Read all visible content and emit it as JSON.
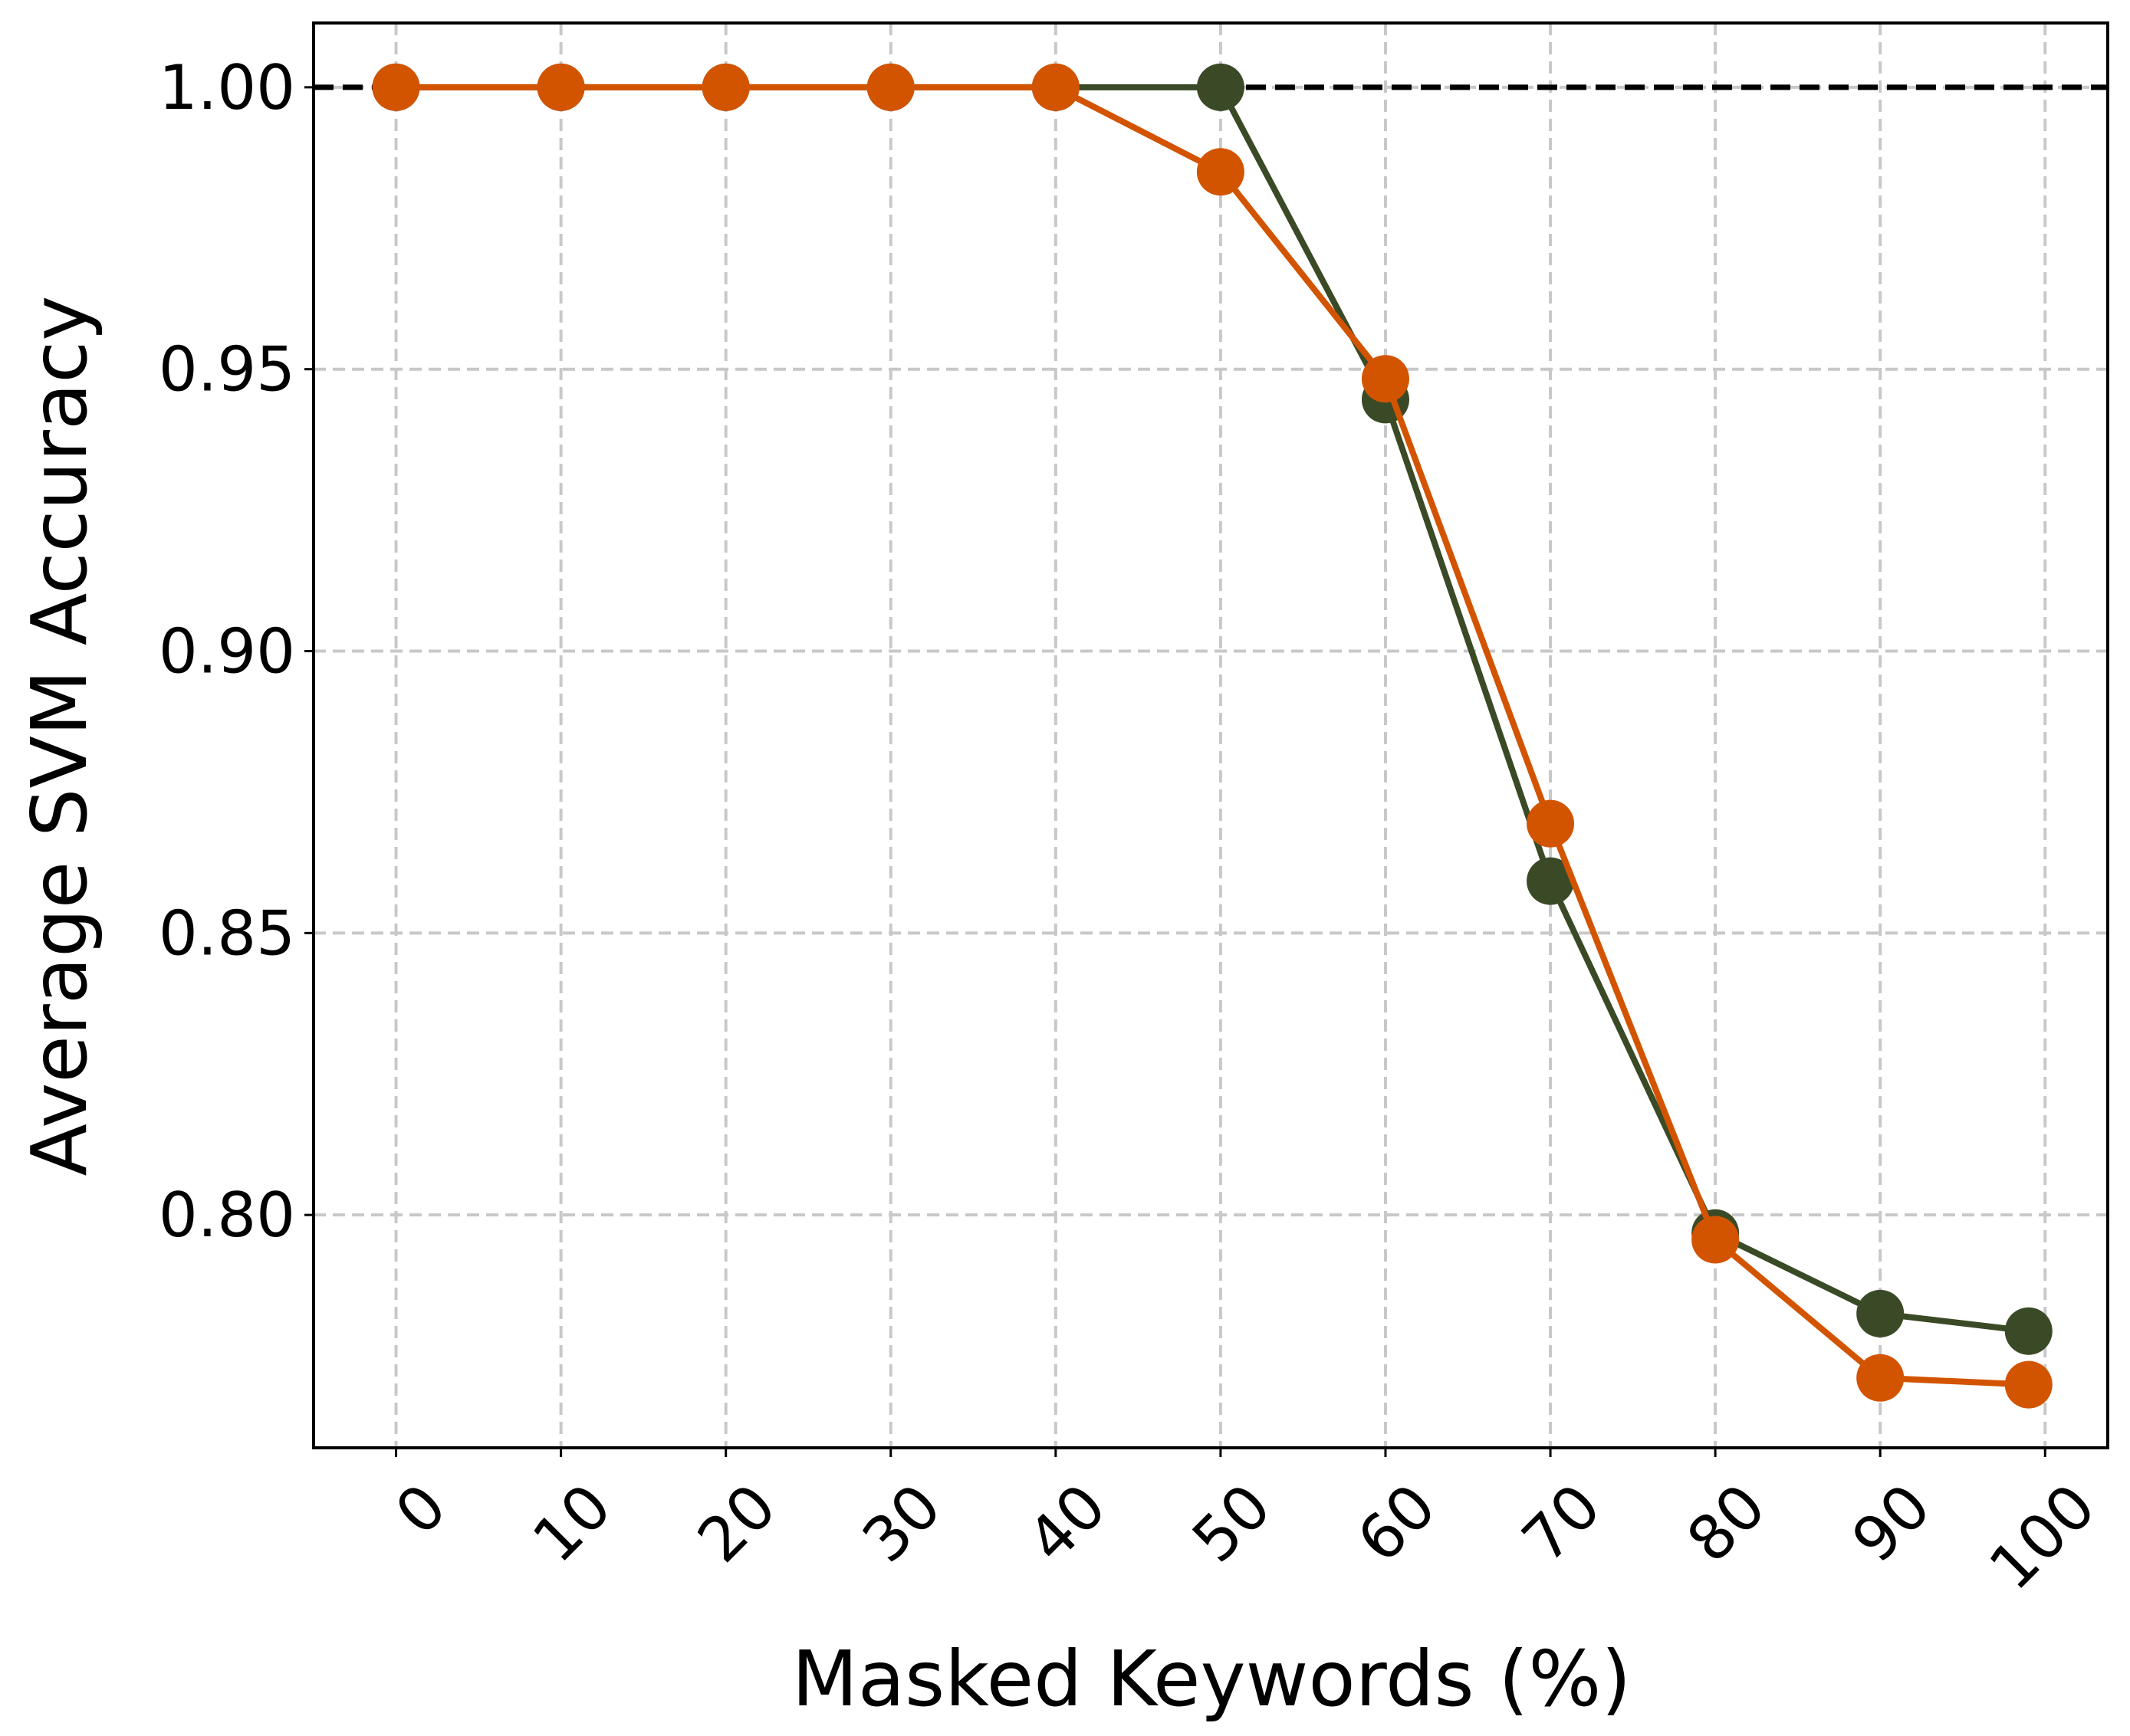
{
  "chart_data": {
    "type": "line",
    "xlabel": "Masked Keywords (%)",
    "ylabel": "Average SVM Accuracy",
    "x": [
      0,
      10,
      20,
      30,
      40,
      50,
      60,
      70,
      80,
      90,
      99
    ],
    "series": [
      {
        "color": "#3b4a26",
        "values": [
          1.0,
          1.0,
          1.0,
          1.0,
          1.0,
          1.0,
          0.9446,
          0.8592,
          0.7968,
          0.7825,
          0.7794
        ]
      },
      {
        "color": "#d35400",
        "values": [
          1.0,
          1.0,
          1.0,
          1.0,
          1.0,
          0.985,
          0.9483,
          0.8694,
          0.7956,
          0.7711,
          0.7699
        ]
      }
    ],
    "reference_line": 1.0,
    "xlim": [
      -5,
      103.8
    ],
    "ylim": [
      0.7587,
      1.0114
    ],
    "xticks": [
      0,
      10,
      20,
      30,
      40,
      50,
      60,
      70,
      80,
      90,
      100
    ],
    "yticks": [
      {
        "value": 0.8,
        "label": "0.80"
      },
      {
        "value": 0.85,
        "label": "0.85"
      },
      {
        "value": 0.9,
        "label": "0.90"
      },
      {
        "value": 0.95,
        "label": "0.95"
      },
      {
        "value": 1.0,
        "label": "1.00"
      }
    ],
    "grid": true
  }
}
